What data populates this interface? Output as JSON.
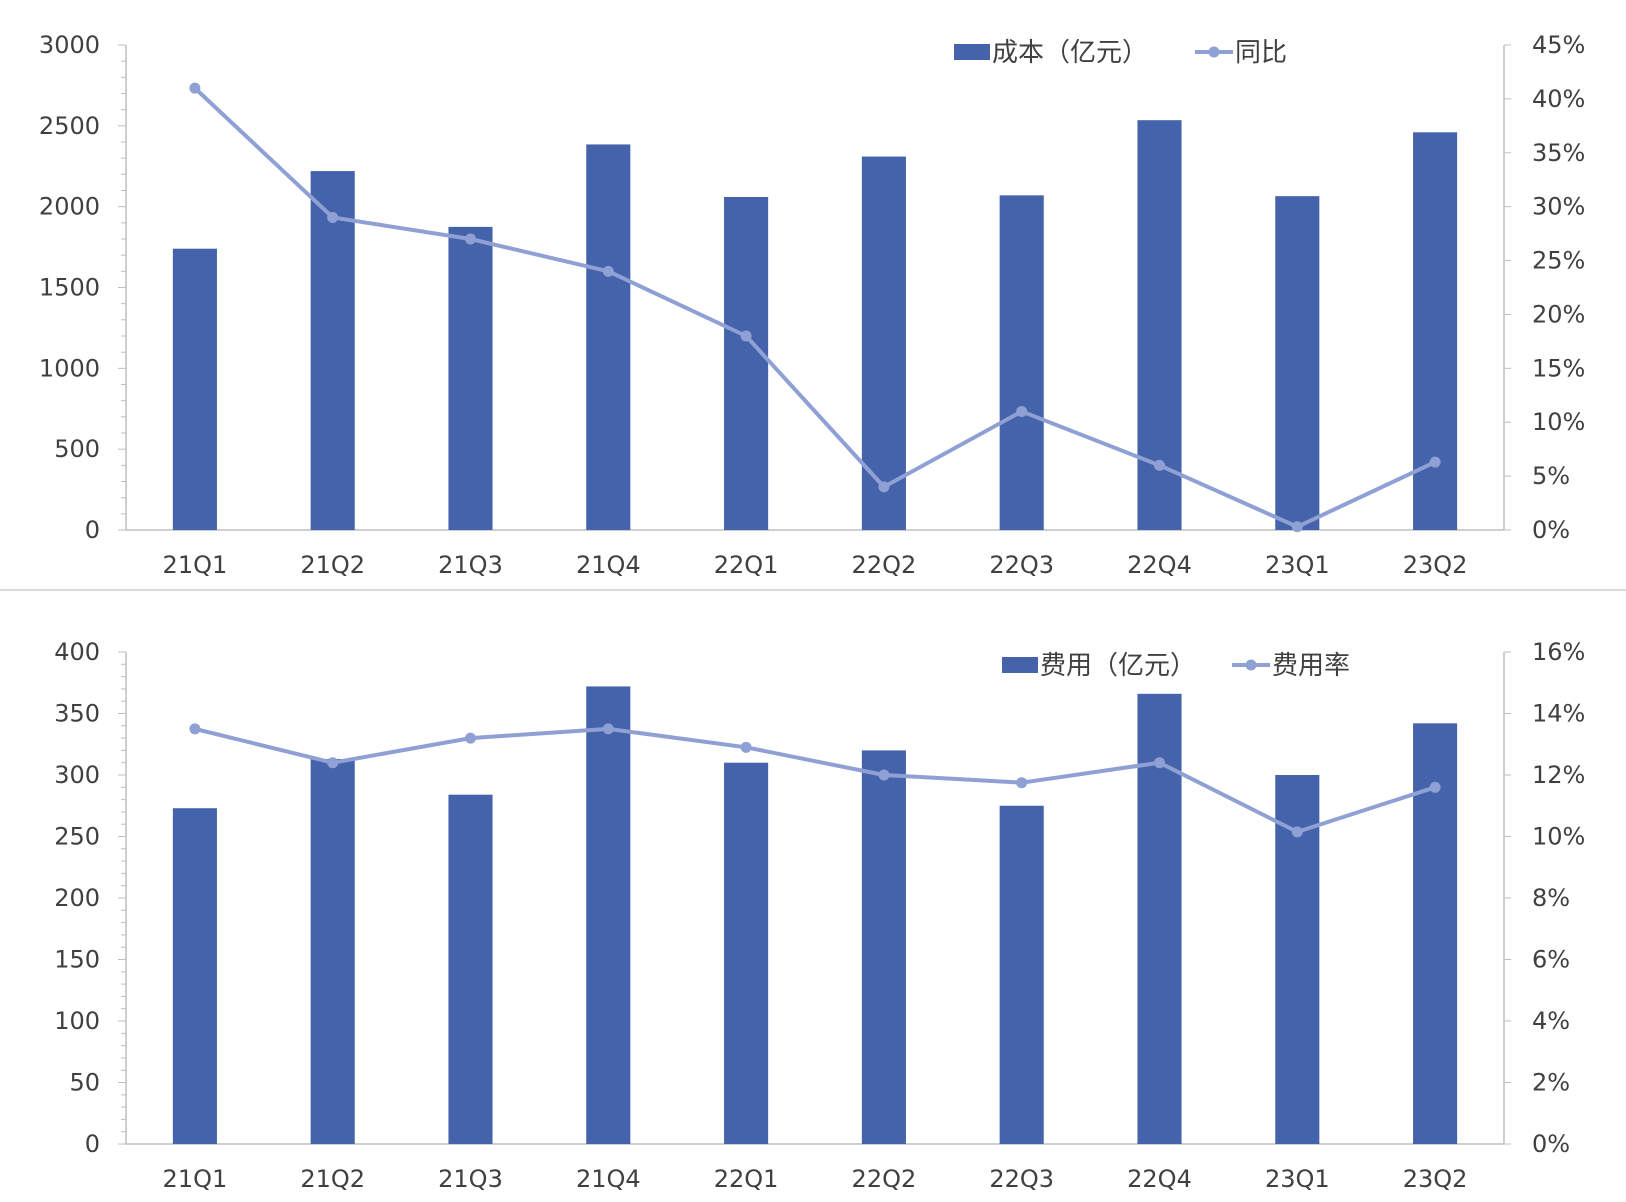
{
  "chart_data": [
    {
      "type": "bar",
      "categories": [
        "21Q1",
        "21Q2",
        "21Q3",
        "21Q4",
        "22Q1",
        "22Q2",
        "22Q3",
        "22Q4",
        "23Q1",
        "23Q2"
      ],
      "series": [
        {
          "name": "成本（亿元）",
          "kind": "bar",
          "axis": "left",
          "values": [
            1740,
            2220,
            1875,
            2385,
            2060,
            2310,
            2070,
            2535,
            2065,
            2460
          ]
        },
        {
          "name": "同比",
          "kind": "line",
          "axis": "right",
          "values": [
            0.41,
            0.29,
            0.27,
            0.24,
            0.18,
            0.04,
            0.11,
            0.06,
            0.003,
            0.063
          ]
        }
      ],
      "yticks_left": [
        "0",
        "500",
        "1000",
        "1500",
        "2000",
        "2500",
        "3000"
      ],
      "ylim_left": [
        0,
        3000
      ],
      "yticks_right": [
        "0%",
        "5%",
        "10%",
        "15%",
        "20%",
        "25%",
        "30%",
        "35%",
        "40%",
        "45%"
      ],
      "ylim_right": [
        0,
        0.45
      ],
      "legend_position": "top-right",
      "grid": false
    },
    {
      "type": "bar",
      "categories": [
        "21Q1",
        "21Q2",
        "21Q3",
        "21Q4",
        "22Q1",
        "22Q2",
        "22Q3",
        "22Q4",
        "23Q1",
        "23Q2"
      ],
      "series": [
        {
          "name": "费用（亿元）",
          "kind": "bar",
          "axis": "left",
          "values": [
            273,
            313,
            284,
            372,
            310,
            320,
            275,
            366,
            300,
            342
          ]
        },
        {
          "name": "费用率",
          "kind": "line",
          "axis": "right",
          "values": [
            0.135,
            0.124,
            0.132,
            0.135,
            0.129,
            0.12,
            0.1175,
            0.124,
            0.1015,
            0.116
          ]
        }
      ],
      "yticks_left": [
        "0",
        "50",
        "100",
        "150",
        "200",
        "250",
        "300",
        "350",
        "400"
      ],
      "ylim_left": [
        0,
        400
      ],
      "yticks_right": [
        "0%",
        "2%",
        "4%",
        "6%",
        "8%",
        "10%",
        "12%",
        "14%",
        "16%"
      ],
      "ylim_right": [
        0,
        0.16
      ],
      "legend_position": "top-right",
      "grid": false
    }
  ],
  "colors": {
    "bar": "#4563AA",
    "line": "#8FA0D4",
    "axis": "#BFBFBF",
    "text": "#404040",
    "divider": "#D9D9D9"
  }
}
